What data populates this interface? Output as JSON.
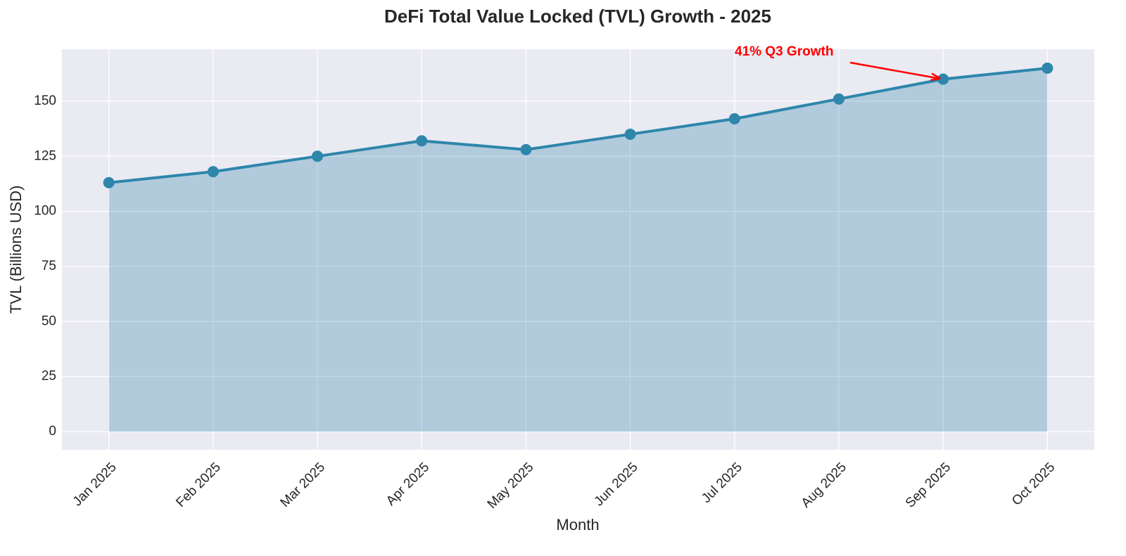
{
  "chart_data": {
    "type": "area_line",
    "title": "DeFi Total Value Locked (TVL) Growth - 2025",
    "x_label": "Month",
    "y_label": "TVL (Billions USD)",
    "categories": [
      "Jan 2025",
      "Feb 2025",
      "Mar 2025",
      "Apr 2025",
      "May 2025",
      "Jun 2025",
      "Jul 2025",
      "Aug 2025",
      "Sep 2025",
      "Oct 2025"
    ],
    "values": [
      113,
      118,
      125,
      132,
      128,
      135,
      142,
      151,
      160,
      165
    ],
    "color": "#2e86ab",
    "ylim": [
      -8.3,
      173.6
    ],
    "yticks": [
      0,
      25,
      50,
      75,
      100,
      125,
      150
    ],
    "grid": true,
    "annotation": {
      "text": "41% Q3 Growth",
      "category": "Sep 2025",
      "color": "#ff0000"
    }
  }
}
